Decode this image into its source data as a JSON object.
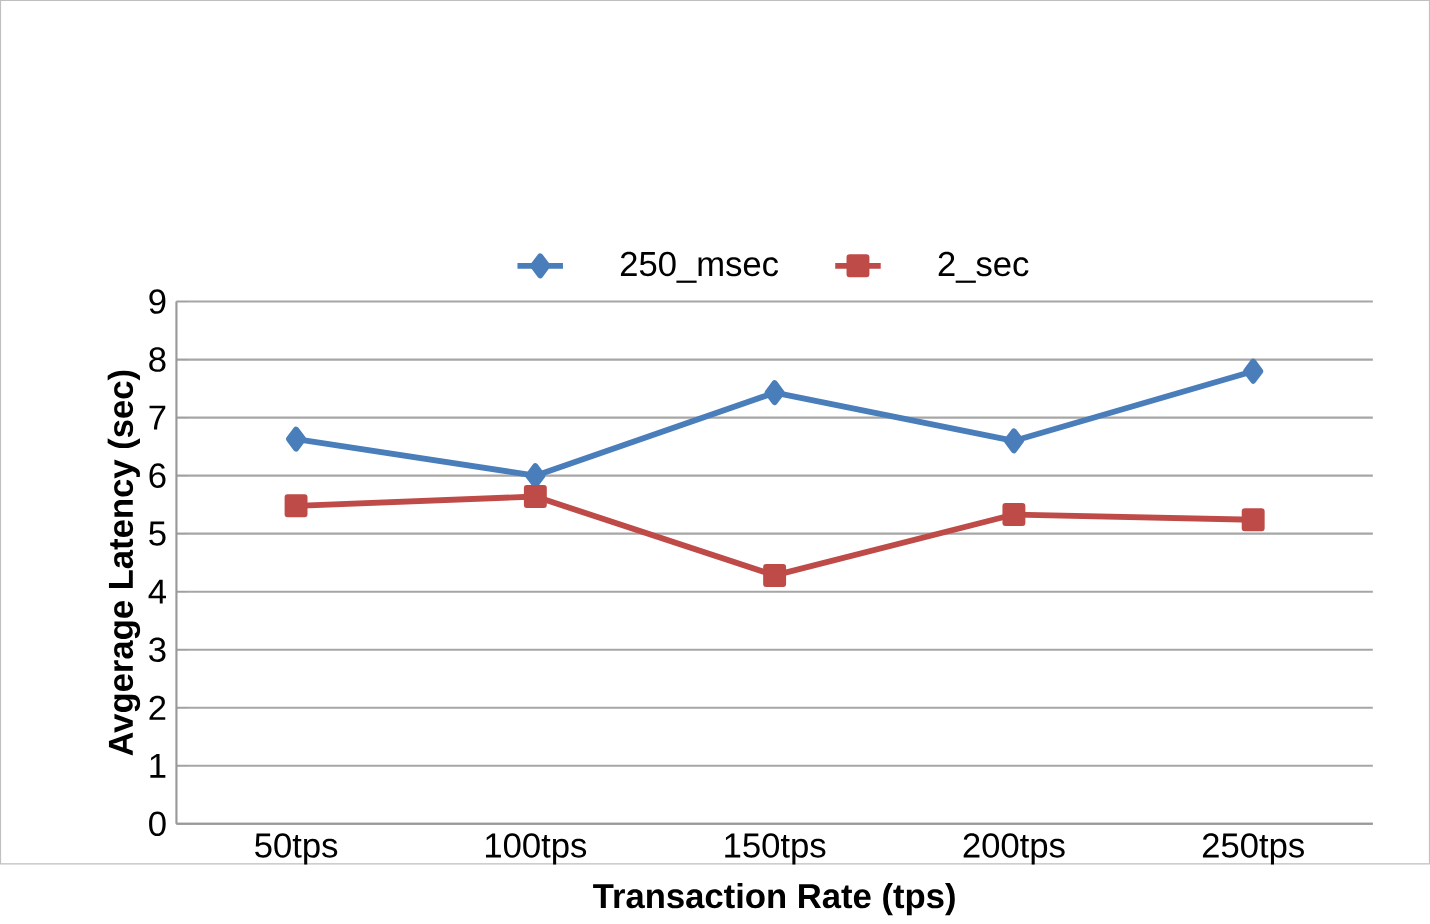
{
  "chart_data": {
    "type": "line",
    "xlabel": "Transaction Rate (tps)",
    "ylabel": "Avgerage Latency (sec)",
    "categories": [
      "50tps",
      "100tps",
      "150tps",
      "200tps",
      "250tps"
    ],
    "series": [
      {
        "name": "250_msec",
        "color": "#4a7ebb",
        "marker": "diamond",
        "values": [
          6.63,
          6.0,
          7.43,
          6.6,
          7.8
        ]
      },
      {
        "name": "2_sec",
        "color": "#be4b48",
        "marker": "square",
        "values": [
          5.48,
          5.64,
          4.28,
          5.33,
          5.24
        ]
      }
    ],
    "ylim": [
      0,
      9
    ],
    "yticks": [
      0,
      1,
      2,
      3,
      4,
      5,
      6,
      7,
      8,
      9
    ],
    "grid": "y",
    "legend": "top"
  }
}
